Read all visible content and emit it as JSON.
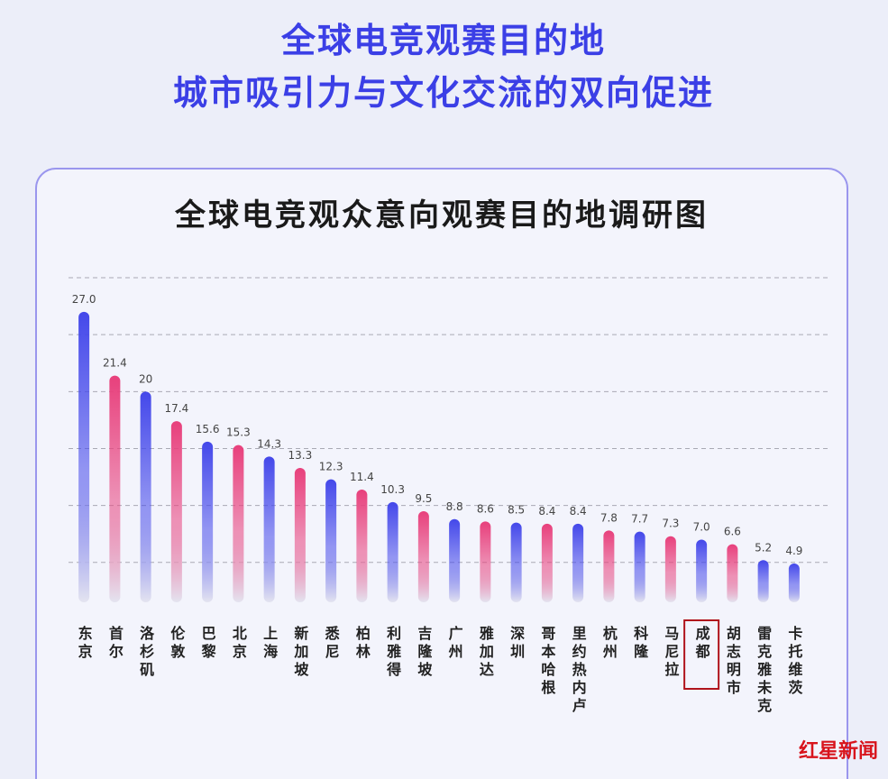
{
  "header": {
    "line1": "全球电竞观赛目的地",
    "line2": "城市吸引力与文化交流的双向促进"
  },
  "watermark": "红星新闻",
  "chart_data": {
    "type": "bar",
    "title": "全球电竞观众意向观赛目的地调研图",
    "categories": [
      "东京",
      "首尔",
      "洛杉矶",
      "伦敦",
      "巴黎",
      "北京",
      "上海",
      "新加坡",
      "悉尼",
      "柏林",
      "利雅得",
      "吉隆坡",
      "广州",
      "雅加达",
      "深圳",
      "哥本哈根",
      "里约热内卢",
      "杭州",
      "科隆",
      "马尼拉",
      "成都",
      "胡志明市",
      "雷克雅未克",
      "卡托维茨"
    ],
    "values": [
      27.0,
      21.4,
      20,
      17.4,
      15.6,
      15.3,
      14.3,
      13.3,
      12.3,
      11.4,
      10.3,
      9.5,
      8.8,
      8.6,
      8.5,
      8.4,
      8.4,
      7.8,
      7.7,
      7.3,
      7.0,
      6.6,
      5.2,
      4.9
    ],
    "value_labels": [
      "27.0",
      "21.4",
      "20",
      "17.4",
      "15.6",
      "15.3",
      "14.3",
      "13.3",
      "12.3",
      "11.4",
      "10.3",
      "9.5",
      "8.8",
      "8.6",
      "8.5",
      "8.4",
      "8.4",
      "7.8",
      "7.7",
      "7.3",
      "7.0",
      "6.6",
      "5.2",
      "4.9"
    ],
    "colors": [
      "#4448ea",
      "#e8407c",
      "#4448ea",
      "#e8407c",
      "#4448ea",
      "#e8407c",
      "#4448ea",
      "#e8407c",
      "#4448ea",
      "#e8407c",
      "#4448ea",
      "#e8407c",
      "#4448ea",
      "#e8407c",
      "#4448ea",
      "#e8407c",
      "#4448ea",
      "#e8407c",
      "#4448ea",
      "#e8407c",
      "#4448ea",
      "#e8407c",
      "#4448ea",
      "#4448ea"
    ],
    "ylim": [
      1.5,
      30
    ],
    "yticks": [
      5,
      10,
      15,
      20,
      25,
      30
    ],
    "grid": true,
    "highlight": "成都"
  }
}
